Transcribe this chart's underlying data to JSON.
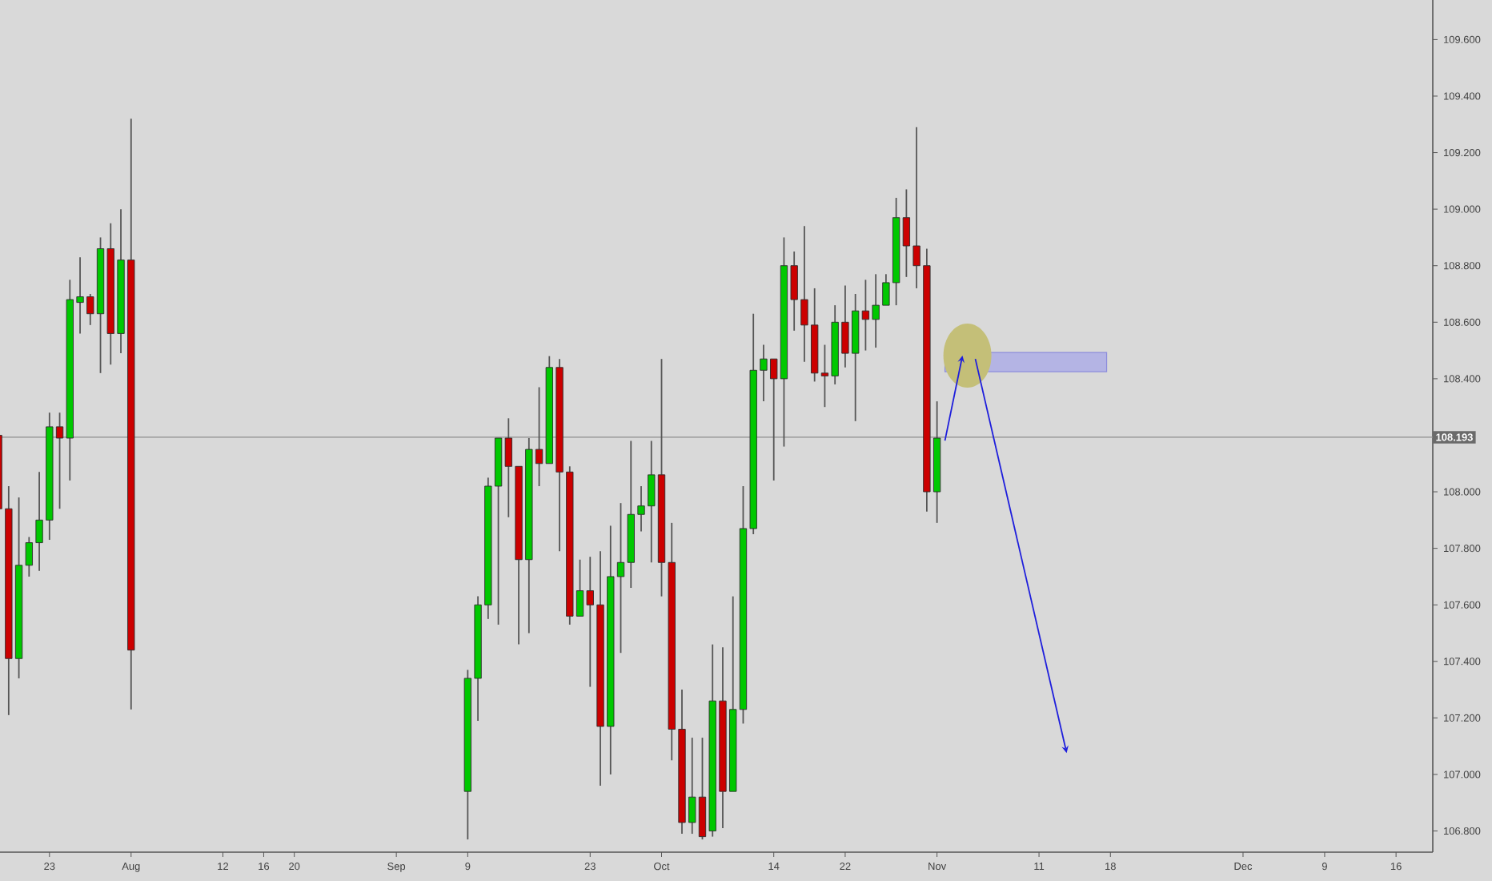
{
  "chart_data": {
    "type": "candlestick",
    "categories": [
      null,
      null,
      null,
      null,
      null,
      "23",
      null,
      null,
      null,
      null,
      null,
      null,
      null,
      "Aug",
      null,
      null,
      null,
      null,
      null,
      null,
      null,
      null,
      "12",
      null,
      null,
      null,
      "16",
      null,
      null,
      "20",
      null,
      null,
      null,
      null,
      null,
      null,
      null,
      null,
      null,
      "Sep",
      null,
      null,
      null,
      null,
      null,
      null,
      "9",
      null,
      null,
      null,
      null,
      null,
      null,
      null,
      null,
      null,
      null,
      null,
      "23",
      null,
      null,
      null,
      null,
      null,
      null,
      "Oct",
      null,
      null,
      null,
      null,
      null,
      null,
      null,
      null,
      null,
      null,
      "14",
      null,
      null,
      null,
      null,
      null,
      null,
      "22",
      null,
      null,
      null,
      null,
      null,
      null,
      null,
      null,
      "Nov",
      null,
      null,
      null,
      null,
      null,
      null,
      null,
      null,
      null,
      "11",
      null,
      null,
      null,
      null,
      null,
      null,
      "18",
      null,
      null,
      null,
      null,
      null,
      null,
      null,
      null,
      null,
      null,
      null,
      null,
      "Dec",
      null,
      null,
      null,
      null,
      null,
      null,
      null,
      "9",
      null,
      null,
      null,
      null,
      null,
      null,
      "16",
      null,
      null,
      null
    ],
    "ohlc": [
      [
        108.2,
        108.2,
        107.93,
        107.94
      ],
      [
        107.94,
        108.02,
        107.21,
        107.41
      ],
      [
        107.41,
        107.98,
        107.34,
        107.74
      ],
      [
        107.74,
        107.84,
        107.7,
        107.82
      ],
      [
        107.82,
        108.07,
        107.72,
        107.9
      ],
      [
        107.9,
        108.28,
        107.83,
        108.23
      ],
      [
        108.23,
        108.28,
        107.94,
        108.19
      ],
      [
        108.19,
        108.75,
        108.04,
        108.68
      ],
      [
        108.67,
        108.83,
        108.56,
        108.69
      ],
      [
        108.69,
        108.7,
        108.59,
        108.63
      ],
      [
        108.63,
        108.9,
        108.42,
        108.86
      ],
      [
        108.86,
        108.95,
        108.45,
        108.56
      ],
      [
        108.56,
        109.0,
        108.49,
        108.82
      ],
      [
        108.82,
        109.32,
        107.23,
        107.44
      ],
      null,
      null,
      null,
      null,
      null,
      null,
      null,
      null,
      null,
      null,
      null,
      null,
      null,
      null,
      null,
      null,
      null,
      null,
      null,
      null,
      null,
      null,
      null,
      null,
      null,
      null,
      null,
      null,
      null,
      null,
      null,
      null,
      [
        106.94,
        107.37,
        106.77,
        107.34
      ],
      [
        107.34,
        107.63,
        107.19,
        107.6
      ],
      [
        107.6,
        108.05,
        107.55,
        108.02
      ],
      [
        108.02,
        108.19,
        107.53,
        108.19
      ],
      [
        108.19,
        108.26,
        107.91,
        108.09
      ],
      [
        108.09,
        108.09,
        107.46,
        107.76
      ],
      [
        107.76,
        108.19,
        107.5,
        108.15
      ],
      [
        108.15,
        108.37,
        108.02,
        108.1
      ],
      [
        108.1,
        108.48,
        108.1,
        108.44
      ],
      [
        108.44,
        108.47,
        107.79,
        108.07
      ],
      [
        108.07,
        108.09,
        107.53,
        107.56
      ],
      [
        107.56,
        107.76,
        107.56,
        107.65
      ],
      [
        107.65,
        107.77,
        107.31,
        107.6
      ],
      [
        107.6,
        107.79,
        106.96,
        107.17
      ],
      [
        107.17,
        107.88,
        107.0,
        107.7
      ],
      [
        107.7,
        107.96,
        107.43,
        107.75
      ],
      [
        107.75,
        108.18,
        107.66,
        107.92
      ],
      [
        107.92,
        108.02,
        107.86,
        107.95
      ],
      [
        107.95,
        108.18,
        107.75,
        108.06
      ],
      [
        108.06,
        108.47,
        107.63,
        107.75
      ],
      [
        107.75,
        107.89,
        107.05,
        107.16
      ],
      [
        107.16,
        107.3,
        106.79,
        106.83
      ],
      [
        106.83,
        107.13,
        106.79,
        106.92
      ],
      [
        106.92,
        107.13,
        106.77,
        106.78
      ],
      [
        106.8,
        107.46,
        106.78,
        107.26
      ],
      [
        107.26,
        107.45,
        106.81,
        106.94
      ],
      [
        106.94,
        107.63,
        106.94,
        107.23
      ],
      [
        107.23,
        108.02,
        107.18,
        107.87
      ],
      [
        107.87,
        108.63,
        107.85,
        108.43
      ],
      [
        108.43,
        108.52,
        108.32,
        108.47
      ],
      [
        108.47,
        108.47,
        108.04,
        108.4
      ],
      [
        108.4,
        108.9,
        108.16,
        108.8
      ],
      [
        108.8,
        108.85,
        108.57,
        108.68
      ],
      [
        108.68,
        108.94,
        108.46,
        108.59
      ],
      [
        108.59,
        108.72,
        108.39,
        108.42
      ],
      [
        108.42,
        108.52,
        108.3,
        108.41
      ],
      [
        108.41,
        108.66,
        108.38,
        108.6
      ],
      [
        108.6,
        108.73,
        108.44,
        108.49
      ],
      [
        108.49,
        108.7,
        108.25,
        108.64
      ],
      [
        108.64,
        108.75,
        108.5,
        108.61
      ],
      [
        108.61,
        108.77,
        108.51,
        108.66
      ],
      [
        108.66,
        108.77,
        108.66,
        108.74
      ],
      [
        108.74,
        109.04,
        108.66,
        108.97
      ],
      [
        108.97,
        109.07,
        108.76,
        108.87
      ],
      [
        108.87,
        109.29,
        108.72,
        108.8
      ],
      [
        108.8,
        108.86,
        107.93,
        108.0
      ],
      [
        108.0,
        108.32,
        107.89,
        108.19
      ],
      null,
      null,
      null,
      null,
      null,
      null,
      null,
      null,
      null,
      null,
      null,
      null,
      null,
      null,
      null,
      null,
      null,
      null,
      null,
      null,
      null,
      null,
      null,
      null,
      null,
      null,
      null,
      null,
      null,
      null,
      null,
      null,
      null,
      null,
      null,
      null,
      null,
      null,
      null,
      null,
      null,
      null,
      null,
      null,
      null,
      null,
      null,
      null
    ],
    "colors": [
      "#cc0000",
      "#cc0000",
      "#00c800",
      "#00c800",
      "#00c800",
      "#00c800",
      "#cc0000",
      "#00c800",
      "#00c800",
      "#cc0000",
      "#00c800",
      "#cc0000",
      "#00c800",
      "#cc0000",
      null,
      null,
      null,
      null,
      null,
      null,
      null,
      null,
      null,
      null,
      null,
      null,
      null,
      null,
      null,
      null,
      null,
      null,
      null,
      null,
      null,
      null,
      null,
      null,
      null,
      null,
      null,
      null,
      null,
      null,
      null,
      null,
      "#00c800",
      "#00c800",
      "#00c800",
      "#00c800",
      "#cc0000",
      "#cc0000",
      "#00c800",
      "#cc0000",
      "#00c800",
      "#cc0000",
      "#cc0000",
      "#00c800",
      "#cc0000",
      "#cc0000",
      "#00c800",
      "#00c800",
      "#00c800",
      "#00c800",
      "#00c800",
      "#cc0000",
      "#cc0000",
      "#cc0000",
      "#00c800",
      "#cc0000",
      "#00c800",
      "#cc0000",
      "#00c800",
      "#00c800",
      "#00c800",
      "#00c800",
      "#cc0000",
      "#00c800",
      "#cc0000",
      "#cc0000",
      "#cc0000",
      "#cc0000",
      "#00c800",
      "#cc0000",
      "#00c800",
      "#cc0000",
      "#00c800",
      "#00c800",
      "#00c800",
      "#cc0000",
      "#cc0000",
      "#cc0000",
      "#00c800",
      null,
      null,
      null,
      null,
      null,
      null,
      null,
      null,
      null,
      null,
      null,
      null,
      null,
      null,
      null,
      null,
      null,
      null,
      null,
      null,
      null,
      null,
      null,
      null,
      null,
      null,
      null,
      null,
      null,
      null,
      null,
      null,
      null,
      null,
      null,
      null,
      null,
      null,
      null,
      null,
      null,
      null,
      null,
      null,
      null,
      null,
      null,
      null
    ],
    "ylim": [
      106.725,
      109.74
    ],
    "yticks": [
      {
        "value": 106.8,
        "label": "106.800"
      },
      {
        "value": 107.0,
        "label": "107.000"
      },
      {
        "value": 107.2,
        "label": "107.200"
      },
      {
        "value": 107.4,
        "label": "107.400"
      },
      {
        "value": 107.6,
        "label": "107.600"
      },
      {
        "value": 107.8,
        "label": "107.800"
      },
      {
        "value": 108.0,
        "label": "108.000"
      },
      {
        "value": 108.4,
        "label": "108.400"
      },
      {
        "value": 108.6,
        "label": "108.600"
      },
      {
        "value": 108.8,
        "label": "108.800"
      },
      {
        "value": 109.0,
        "label": "109.000"
      },
      {
        "value": 109.2,
        "label": "109.200"
      },
      {
        "value": 109.4,
        "label": "109.400"
      },
      {
        "value": 109.6,
        "label": "109.600"
      }
    ],
    "ref_lines": [
      {
        "axis": "y",
        "value": 108.193,
        "label": "108.193",
        "color": "#8c8c8c"
      }
    ]
  }
}
